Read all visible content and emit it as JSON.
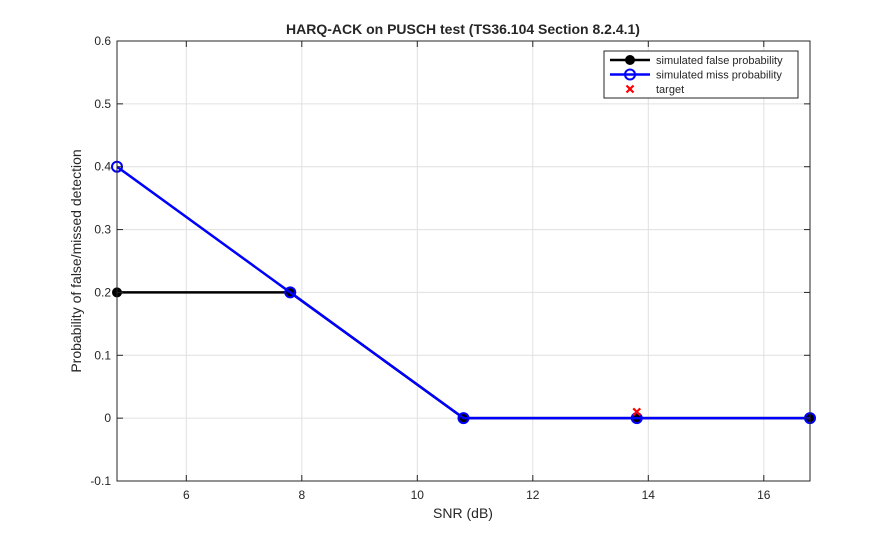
{
  "chart_data": {
    "type": "line",
    "title": "HARQ-ACK on PUSCH test (TS36.104 Section 8.2.4.1)",
    "xlabel": "SNR (dB)",
    "ylabel": "Probability of false/missed detection",
    "xlim": [
      4.8,
      16.8
    ],
    "ylim": [
      -0.1,
      0.6
    ],
    "xticks": [
      6,
      8,
      10,
      12,
      14,
      16
    ],
    "yticks": [
      -0.1,
      0,
      0.1,
      0.2,
      0.3,
      0.4,
      0.5,
      0.6
    ],
    "grid": true,
    "legend_position": "top-right",
    "series": [
      {
        "name": "simulated false probability",
        "x": [
          4.8,
          7.8,
          10.8,
          13.8,
          16.8
        ],
        "y": [
          0.2,
          0.2,
          0,
          0,
          0
        ],
        "color": "#000000",
        "marker": "filled-circle"
      },
      {
        "name": "simulated miss probability",
        "x": [
          4.8,
          7.8,
          10.8,
          13.8,
          16.8
        ],
        "y": [
          0.4,
          0.2,
          0,
          0,
          0
        ],
        "color": "#0000ff",
        "marker": "open-circle"
      },
      {
        "name": "target",
        "x": [
          13.8
        ],
        "y": [
          0.01
        ],
        "color": "#ff0000",
        "marker": "x"
      }
    ]
  }
}
